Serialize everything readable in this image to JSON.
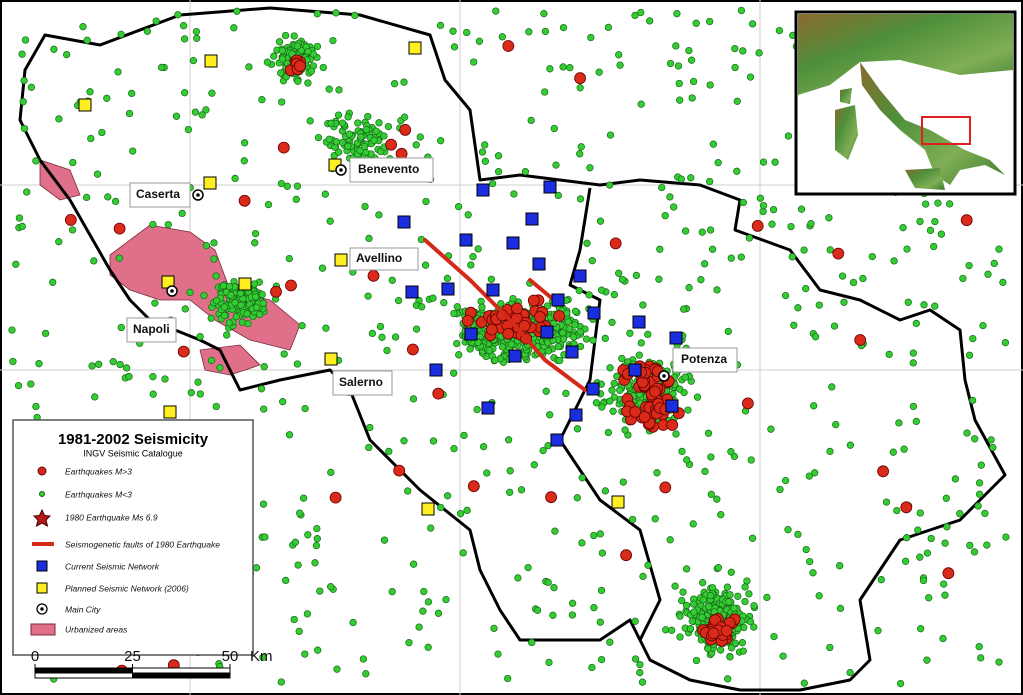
{
  "map": {
    "cities": [
      {
        "label": "Benevento"
      },
      {
        "label": "Caserta"
      },
      {
        "label": "Avellino"
      },
      {
        "label": "Napoli"
      },
      {
        "label": "Salerno"
      },
      {
        "label": "Potenza"
      }
    ],
    "legend": {
      "title": "1981-2002 Seismicity",
      "subtitle": "INGV Seismic Catalogue",
      "items": [
        "Earthquakes M>3",
        "Earthquakes M<3",
        "1980 Earthquake Ms 6.9",
        "Seismogenetic faults of 1980 Earthquake",
        "Current Seismic Network",
        "Planned Seismic Network (2006)",
        "Main City",
        "Urbanized areas"
      ]
    },
    "scale_bar": {
      "ticks": [
        0,
        25,
        50
      ],
      "unit": "Km"
    }
  }
}
